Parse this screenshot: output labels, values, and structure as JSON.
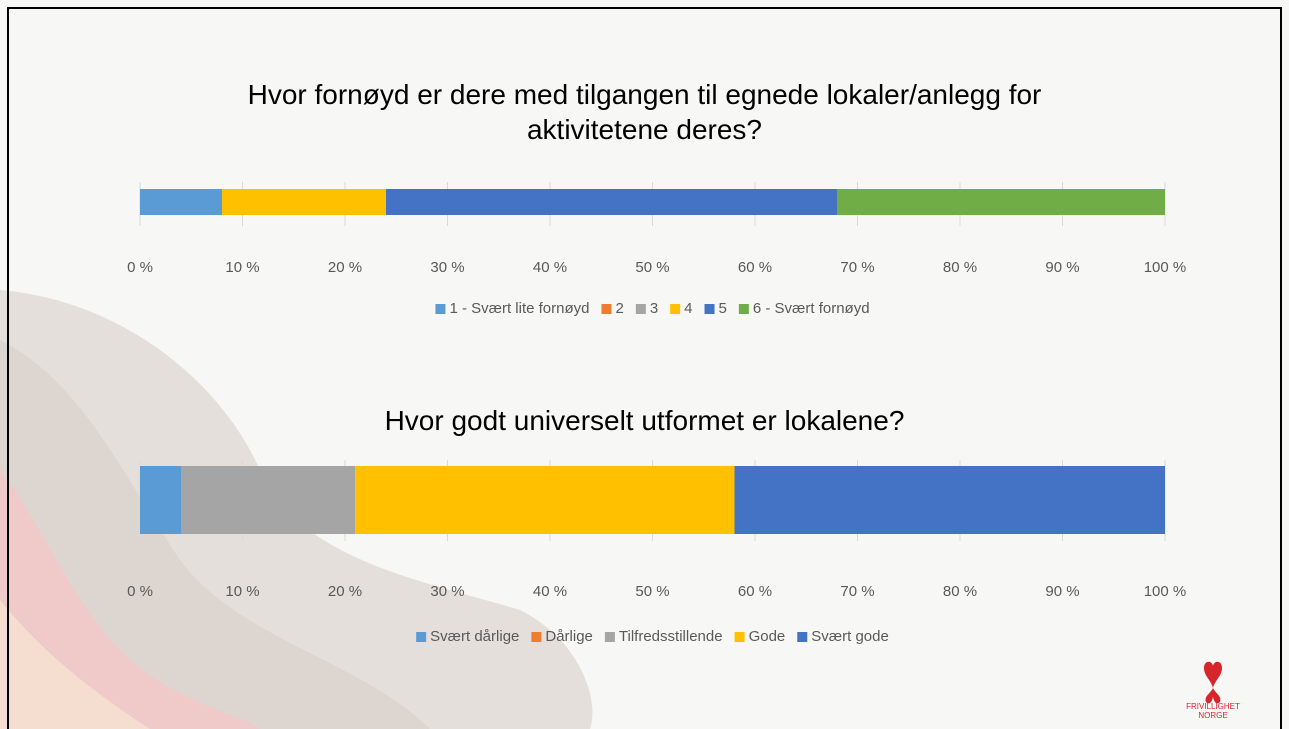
{
  "chart_data": [
    {
      "type": "stacked-bar-100",
      "title": "Hvor fornøyd er dere med tilgangen til egnede lokaler/anlegg for aktivitetene deres?",
      "series": [
        {
          "name": "1 - Svært lite fornøyd",
          "color": "#5b9bd5",
          "values": [
            8
          ]
        },
        {
          "name": "2",
          "color": "#ed7d31",
          "values": [
            0
          ]
        },
        {
          "name": "3",
          "color": "#a5a5a5",
          "values": [
            0
          ]
        },
        {
          "name": "4",
          "color": "#ffc000",
          "values": [
            16
          ]
        },
        {
          "name": "5",
          "color": "#4472c4",
          "values": [
            44
          ]
        },
        {
          "name": "6 - Svært fornøyd",
          "color": "#70ad47",
          "values": [
            32
          ]
        }
      ],
      "xlim": [
        0,
        100
      ],
      "xticks": [
        {
          "value": 0,
          "label": "0 %"
        },
        {
          "value": 10,
          "label": "10 %"
        },
        {
          "value": 20,
          "label": "20 %"
        },
        {
          "value": 30,
          "label": "30 %"
        },
        {
          "value": 40,
          "label": "40 %"
        },
        {
          "value": 50,
          "label": "50 %"
        },
        {
          "value": 60,
          "label": "60 %"
        },
        {
          "value": 70,
          "label": "70 %"
        },
        {
          "value": 80,
          "label": "80 %"
        },
        {
          "value": 90,
          "label": "90 %"
        },
        {
          "value": 100,
          "label": "100 %"
        }
      ],
      "grid": true,
      "legend": "bottom"
    },
    {
      "type": "stacked-bar-100",
      "title": "Hvor godt universelt utformet er lokalene?",
      "series": [
        {
          "name": "Svært dårlige",
          "color": "#5b9bd5",
          "values": [
            4
          ]
        },
        {
          "name": "Dårlige",
          "color": "#ed7d31",
          "values": [
            0
          ]
        },
        {
          "name": "Tilfredsstillende",
          "color": "#a5a5a5",
          "values": [
            17
          ]
        },
        {
          "name": "Gode",
          "color": "#ffc000",
          "values": [
            37
          ]
        },
        {
          "name": "Svært gode",
          "color": "#4472c4",
          "values": [
            42
          ]
        }
      ],
      "xlim": [
        0,
        100
      ],
      "xticks": [
        {
          "value": 0,
          "label": "0 %"
        },
        {
          "value": 10,
          "label": "10 %"
        },
        {
          "value": 20,
          "label": "20 %"
        },
        {
          "value": 30,
          "label": "30 %"
        },
        {
          "value": 40,
          "label": "40 %"
        },
        {
          "value": 50,
          "label": "50 %"
        },
        {
          "value": 60,
          "label": "60 %"
        },
        {
          "value": 70,
          "label": "70 %"
        },
        {
          "value": 80,
          "label": "80 %"
        },
        {
          "value": 90,
          "label": "90 %"
        },
        {
          "value": 100,
          "label": "100 %"
        }
      ],
      "grid": true,
      "legend": "bottom"
    }
  ],
  "logo": {
    "line1": "FRIVILLIGHET",
    "line2": "NORGE"
  }
}
